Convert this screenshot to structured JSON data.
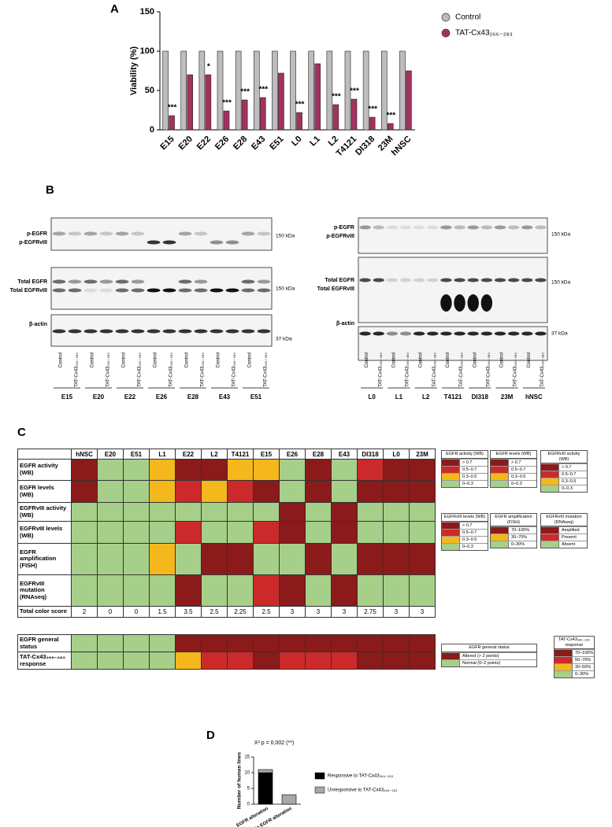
{
  "panel_labels": [
    "A",
    "B",
    "C",
    "D"
  ],
  "chart_data": [
    {
      "type": "bar",
      "y_label": "Viability (%)",
      "categories": [
        "E15",
        "E20",
        "E22",
        "E26",
        "E28",
        "E43",
        "E51",
        "L0",
        "L1",
        "L2",
        "T4121",
        "DI318",
        "23M",
        "hNSC"
      ],
      "series": [
        {
          "name": "Control",
          "color": "#bdbdbd",
          "values": [
            100,
            100,
            100,
            100,
            100,
            100,
            100,
            100,
            100,
            100,
            100,
            100,
            100,
            100
          ]
        },
        {
          "name": "TAT-Cx43₂₆₆₋₂₈₃",
          "color": "#a3325f",
          "values": [
            18,
            70,
            70,
            24,
            38,
            41,
            72,
            22,
            84,
            32,
            39,
            16,
            8,
            75
          ]
        }
      ],
      "annotations": [
        "***",
        null,
        "*",
        "***",
        "***",
        "***",
        null,
        "***",
        null,
        "***",
        "***",
        "***",
        "***",
        null
      ],
      "ylim": [
        0,
        150
      ],
      "yticks": [
        0,
        50,
        100,
        150
      ],
      "legend": "top-right"
    },
    {
      "type": "stacked-bar",
      "title": "X² p = 0,002 (**)",
      "y_label": "Number of human lines",
      "categories": [
        "EGFR alteration",
        "No EGFR alteration"
      ],
      "series": [
        {
          "name": "Responsive to TAT-Cx43₂₆₆₋₂₈₃",
          "color": "#000000",
          "values": [
            10,
            0
          ]
        },
        {
          "name": "Unresponsive to TAT-Cx43₂₆₆₋₂₈₃",
          "color": "#a8a8a8",
          "values": [
            1,
            3
          ]
        }
      ],
      "ylim": [
        0,
        15
      ],
      "yticks": [
        0,
        5,
        10,
        15
      ],
      "legend": "right"
    }
  ],
  "blots": {
    "lane_labels": [
      "Control",
      "TAT-Cx43₂₆₆₋₂₈₃"
    ],
    "left": {
      "groups": [
        "E15",
        "E20",
        "E22",
        "E26",
        "E28",
        "E43",
        "E51"
      ],
      "row_labels": [
        [
          "p-EGFR",
          "p-EGFRvIII"
        ],
        [
          "Total EGFR",
          "Total EGFRvIII"
        ],
        [
          "β-actin"
        ]
      ],
      "size_labels": [
        "150 kDa",
        "150 kDa",
        "37 kDa"
      ]
    },
    "right": {
      "groups": [
        "L0",
        "L1",
        "L2",
        "T4121",
        "DI318",
        "23M",
        "hNSC"
      ],
      "row_labels": [
        [
          "p-EGFR",
          "p-EGFRvIII"
        ],
        [
          "Total EGFR",
          "Total EGFRvIII"
        ],
        [
          "β-actin"
        ]
      ],
      "size_labels": [
        "150 kDa",
        "150 kDa",
        "37 kDa"
      ]
    }
  },
  "table": {
    "columns": [
      "hNSC",
      "E20",
      "E51",
      "L1",
      "E22",
      "L2",
      "T4121",
      "E15",
      "E26",
      "E28",
      "E43",
      "DI318",
      "L0",
      "23M"
    ],
    "rows": [
      {
        "label": "EGFR activity (WB)",
        "cells": [
          "#8b1a1a",
          "#a6cf8a",
          "#a6cf8a",
          "#f5b81c",
          "#8b1a1a",
          "#8b1a1a",
          "#f5b81c",
          "#f5b81c",
          "#a6cf8a",
          "#8b1a1a",
          "#a6cf8a",
          "#cc2a2a",
          "#8b1a1a",
          "#8b1a1a"
        ]
      },
      {
        "label": "EGFR levels (WB)",
        "cells": [
          "#8b1a1a",
          "#a6cf8a",
          "#a6cf8a",
          "#f5b81c",
          "#cc2a2a",
          "#f5b81c",
          "#cc2a2a",
          "#8b1a1a",
          "#a6cf8a",
          "#8b1a1a",
          "#a6cf8a",
          "#8b1a1a",
          "#8b1a1a",
          "#8b1a1a"
        ]
      },
      {
        "label": "EGFRvIII activity (WB)",
        "cells": [
          "#a6cf8a",
          "#a6cf8a",
          "#a6cf8a",
          "#a6cf8a",
          "#a6cf8a",
          "#a6cf8a",
          "#a6cf8a",
          "#a6cf8a",
          "#8b1a1a",
          "#a6cf8a",
          "#8b1a1a",
          "#a6cf8a",
          "#a6cf8a",
          "#a6cf8a"
        ]
      },
      {
        "label": "EGFRvIII levels (WB)",
        "cells": [
          "#a6cf8a",
          "#a6cf8a",
          "#a6cf8a",
          "#a6cf8a",
          "#cc2a2a",
          "#a6cf8a",
          "#a6cf8a",
          "#cc2a2a",
          "#8b1a1a",
          "#a6cf8a",
          "#8b1a1a",
          "#a6cf8a",
          "#a6cf8a",
          "#a6cf8a"
        ]
      },
      {
        "label": "EGFR amplification (FISH)",
        "cells": [
          "#a6cf8a",
          "#a6cf8a",
          "#a6cf8a",
          "#f5b81c",
          "#a6cf8a",
          "#8b1a1a",
          "#8b1a1a",
          "#a6cf8a",
          "#a6cf8a",
          "#8b1a1a",
          "#a6cf8a",
          "#8b1a1a",
          "#8b1a1a",
          "#8b1a1a"
        ]
      },
      {
        "label": "EGFRvIII mutation (RNAseq)",
        "cells": [
          "#a6cf8a",
          "#a6cf8a",
          "#a6cf8a",
          "#a6cf8a",
          "#8b1a1a",
          "#a6cf8a",
          "#a6cf8a",
          "#cc2a2a",
          "#8b1a1a",
          "#a6cf8a",
          "#8b1a1a",
          "#a6cf8a",
          "#a6cf8a",
          "#a6cf8a"
        ]
      }
    ],
    "score_row": {
      "label": "Total color score",
      "values": [
        2,
        0,
        0,
        1.5,
        3.5,
        2.5,
        2.25,
        2.5,
        3,
        3,
        3,
        2.75,
        3,
        3
      ]
    },
    "status_rows": [
      {
        "label": "EGFR general status",
        "cells": [
          "#a6cf8a",
          "#a6cf8a",
          "#a6cf8a",
          "#a6cf8a",
          "#8b1a1a",
          "#8b1a1a",
          "#8b1a1a",
          "#8b1a1a",
          "#8b1a1a",
          "#8b1a1a",
          "#8b1a1a",
          "#8b1a1a",
          "#8b1a1a",
          "#8b1a1a"
        ]
      },
      {
        "label": "TAT-Cx43₂₆₆₋₂₈₃ response",
        "cells": [
          "#a6cf8a",
          "#a6cf8a",
          "#a6cf8a",
          "#a6cf8a",
          "#f5b81c",
          "#cc2a2a",
          "#cc2a2a",
          "#8b1a1a",
          "#cc2a2a",
          "#cc2a2a",
          "#cc2a2a",
          "#8b1a1a",
          "#8b1a1a",
          "#8b1a1a"
        ]
      }
    ]
  },
  "legends": [
    {
      "title": "EGFR activity (WB)",
      "items": [
        {
          "color": "#8b1a1a",
          "label": "> 0.7"
        },
        {
          "color": "#cc2a2a",
          "label": "0.5–0.7"
        },
        {
          "color": "#f5b81c",
          "label": "0.3–0.5"
        },
        {
          "color": "#a6cf8a",
          "label": "0–0.3"
        }
      ]
    },
    {
      "title": "EGFR levels (WB)",
      "items": [
        {
          "color": "#8b1a1a",
          "label": "> 0.7"
        },
        {
          "color": "#cc2a2a",
          "label": "0.5–0.7"
        },
        {
          "color": "#f5b81c",
          "label": "0.3–0.5"
        },
        {
          "color": "#a6cf8a",
          "label": "0–0.3"
        }
      ]
    },
    {
      "title": "EGFRvIII activity (WB)",
      "items": [
        {
          "color": "#8b1a1a",
          "label": "> 0.7"
        },
        {
          "color": "#cc2a2a",
          "label": "0.5–0.7"
        },
        {
          "color": "#f5b81c",
          "label": "0.3–0.5"
        },
        {
          "color": "#a6cf8a",
          "label": "0–0.3"
        }
      ]
    },
    {
      "title": "EGFRvIII levels (WB)",
      "items": [
        {
          "color": "#8b1a1a",
          "label": "> 0.7"
        },
        {
          "color": "#cc2a2a",
          "label": "0.5–0.7"
        },
        {
          "color": "#f5b81c",
          "label": "0.3–0.5"
        },
        {
          "color": "#a6cf8a",
          "label": "0–0.3"
        }
      ]
    },
    {
      "title": "EGFR amplification (FISH)",
      "items": [
        {
          "color": "#8b1a1a",
          "label": "70–100%"
        },
        {
          "color": "#f5b81c",
          "label": "30–70%"
        },
        {
          "color": "#a6cf8a",
          "label": "0–30%"
        }
      ]
    },
    {
      "title": "EGFRvIII mutation (RNAseq)",
      "items": [
        {
          "color": "#8b1a1a",
          "label": "Amplified"
        },
        {
          "color": "#cc2a2a",
          "label": "Present"
        },
        {
          "color": "#a6cf8a",
          "label": "Absent"
        }
      ]
    },
    {
      "title": "EGFR general status",
      "items": [
        {
          "color": "#8b1a1a",
          "label": "Altered (> 2 points)"
        },
        {
          "color": "#a6cf8a",
          "label": "Normal (0–2 points)"
        }
      ]
    },
    {
      "title": "TAT-Cx43₂₆₆₋₂₈₃ response",
      "items": [
        {
          "color": "#8b1a1a",
          "label": "70–100%"
        },
        {
          "color": "#cc2a2a",
          "label": "50–70%"
        },
        {
          "color": "#f5b81c",
          "label": "30–50%"
        },
        {
          "color": "#a6cf8a",
          "label": "0–30%"
        }
      ]
    }
  ]
}
